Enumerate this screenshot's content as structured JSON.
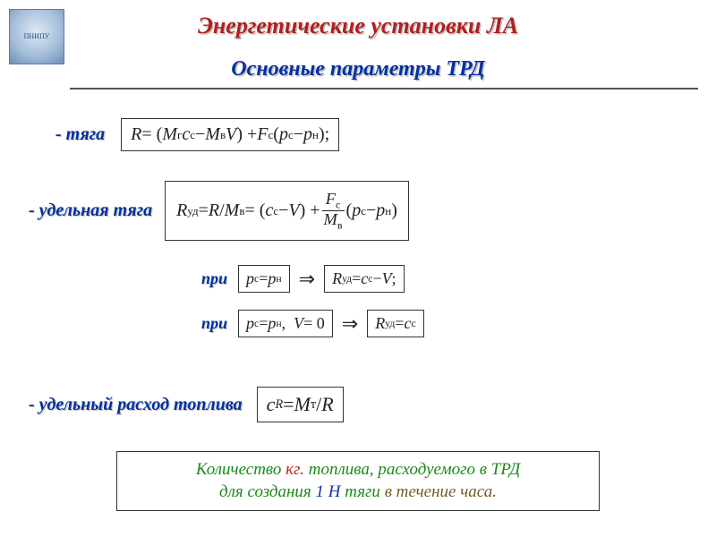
{
  "logo_text": "ПНИПУ",
  "title": "Энергетические установки ЛА",
  "subtitle": "Основные параметры ТРД",
  "labels": {
    "thrust": "- тяга",
    "spec_thrust": "- удельная тяга",
    "when": "при",
    "sfc": "- удельный расход топлива"
  },
  "formulas": {
    "R_html": "<i>R</i> = (<i>M</i><span class='sub'>г</span><i>c</i><span class='sub'>c</span> − <i>M</i><span class='sub'>в</span><i>V</i>) + <i>F</i><span class='sub'>c</span>(<i>p</i><span class='sub'>c</span> − <i>p</i><span class='sub'>н</span>);",
    "Rud_html": "<i>R</i><span class='sub'>уд</span> = <i>R</i> / <i>M</i><span class='sub'>в</span> = (<i>c</i><span class='sub'>c</span> − <i>V</i>) + <span class='frac'><span class='num'><i>F</i><span class='sub'>c</span></span><span class='bar'></span><span class='den'><i>M</i><span class='sub'>в</span></span></span>(<i>p</i><span class='sub'>c</span> − <i>p</i><span class='sub'>н</span>)",
    "cond1_html": "<i>p</i><span class='sub'>c</span> = <i>p</i><span class='sub'>н</span>",
    "res1_html": "<i>R</i><span class='sub'>уд</span> = <i>c</i><span class='sub'>c</span> − <i>V</i>;",
    "cond2_html": "<i>p</i><span class='sub'>c</span> = <i>p</i><span class='sub'>н</span>,&nbsp;&nbsp;<i>V</i> = 0",
    "res2_html": "<i>R</i><span class='sub'>уд</span> = <i>c</i><span class='sub'>c</span>",
    "cR_html": "<i>c</i><span class='sub'><i>R</i></span> = <i>M</i><span class='sub'>т</span> / <i>R</i>"
  },
  "note": {
    "p1": "Количество ",
    "kg": "кг.",
    "p2": " топлива, расходуемого в ТРД",
    "p3": "для создания ",
    "oneN": "1 Н",
    "p4": " тяги ",
    "hour": "в течение часа."
  },
  "colors": {
    "title": "#b02020",
    "subtitle": "#0030a0",
    "green": "#1a8a1a",
    "red": "#c02020",
    "blue": "#1030b0",
    "brown": "#7a5a20",
    "border": "#333333",
    "bg": "#ffffff"
  }
}
